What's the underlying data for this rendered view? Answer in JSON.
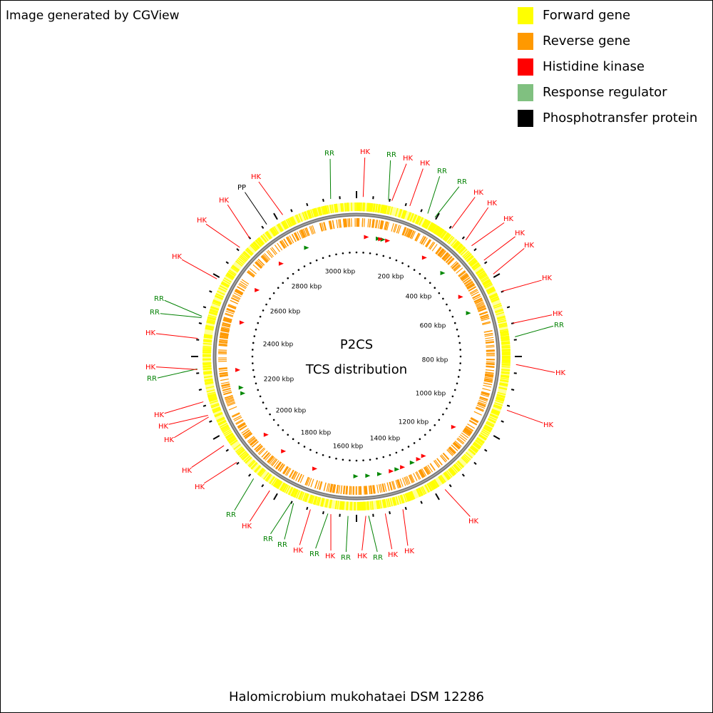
{
  "header": {
    "note": "Image generated by CGView"
  },
  "legend": [
    {
      "name": "Forward gene",
      "color": "#ffff00"
    },
    {
      "name": "Reverse gene",
      "color": "#ff9900"
    },
    {
      "name": "Histidine kinase",
      "color": "#ff0000"
    },
    {
      "name": "Response regulator",
      "color": "#80c080"
    },
    {
      "name": "Phosphotransfer protein",
      "color": "#000000"
    }
  ],
  "center": {
    "title": "P2CS",
    "subtitle": "TCS distribution"
  },
  "scale_labels": [
    "200 kbp",
    "400 kbp",
    "600 kbp",
    "800 kbp",
    "1000 kbp",
    "1200 kbp",
    "1400 kbp",
    "1600 kbp",
    "1800 kbp",
    "2000 kbp",
    "2200 kbp",
    "2400 kbp",
    "2600 kbp",
    "2800 kbp",
    "3000 kbp"
  ],
  "features": [
    {
      "label": "RR",
      "color": "#008000"
    },
    {
      "label": "HK",
      "color": "#ff0000"
    },
    {
      "label": "RR",
      "color": "#008000"
    },
    {
      "label": "HK",
      "color": "#ff0000"
    },
    {
      "label": "HK",
      "color": "#ff0000"
    },
    {
      "label": "RR",
      "color": "#008000"
    },
    {
      "label": "RR",
      "color": "#008000"
    },
    {
      "label": "HK",
      "color": "#ff0000"
    },
    {
      "label": "HK",
      "color": "#ff0000"
    },
    {
      "label": "HK",
      "color": "#ff0000"
    },
    {
      "label": "HK",
      "color": "#ff0000"
    },
    {
      "label": "HK",
      "color": "#ff0000"
    },
    {
      "label": "HK",
      "color": "#ff0000"
    },
    {
      "label": "HK",
      "color": "#ff0000"
    },
    {
      "label": "RR",
      "color": "#008000"
    },
    {
      "label": "HK",
      "color": "#ff0000"
    },
    {
      "label": "HK",
      "color": "#ff0000"
    },
    {
      "label": "HK",
      "color": "#ff0000"
    },
    {
      "label": "HK",
      "color": "#ff0000"
    },
    {
      "label": "HK",
      "color": "#ff0000"
    },
    {
      "label": "RR",
      "color": "#008000"
    },
    {
      "label": "HK",
      "color": "#ff0000"
    },
    {
      "label": "RR",
      "color": "#008000"
    },
    {
      "label": "HK",
      "color": "#ff0000"
    },
    {
      "label": "RR",
      "color": "#008000"
    },
    {
      "label": "HK",
      "color": "#ff0000"
    },
    {
      "label": "RR",
      "color": "#008000"
    },
    {
      "label": "RR",
      "color": "#008000"
    },
    {
      "label": "HK",
      "color": "#ff0000"
    },
    {
      "label": "RR",
      "color": "#008000"
    },
    {
      "label": "HK",
      "color": "#ff0000"
    },
    {
      "label": "HK",
      "color": "#ff0000"
    },
    {
      "label": "HK",
      "color": "#ff0000"
    },
    {
      "label": "HK",
      "color": "#ff0000"
    },
    {
      "label": "HK",
      "color": "#ff0000"
    },
    {
      "label": "RR",
      "color": "#008000"
    },
    {
      "label": "HK",
      "color": "#ff0000"
    },
    {
      "label": "HK",
      "color": "#ff0000"
    },
    {
      "label": "RR",
      "color": "#008000"
    },
    {
      "label": "RR",
      "color": "#008000"
    },
    {
      "label": "HK",
      "color": "#ff0000"
    },
    {
      "label": "HK",
      "color": "#ff0000"
    },
    {
      "label": "HK",
      "color": "#ff0000"
    },
    {
      "label": "PP",
      "color": "#000000"
    },
    {
      "label": "HK",
      "color": "#ff0000"
    }
  ],
  "footer": {
    "organism": "Halomicrobium mukohataei DSM 12286"
  }
}
